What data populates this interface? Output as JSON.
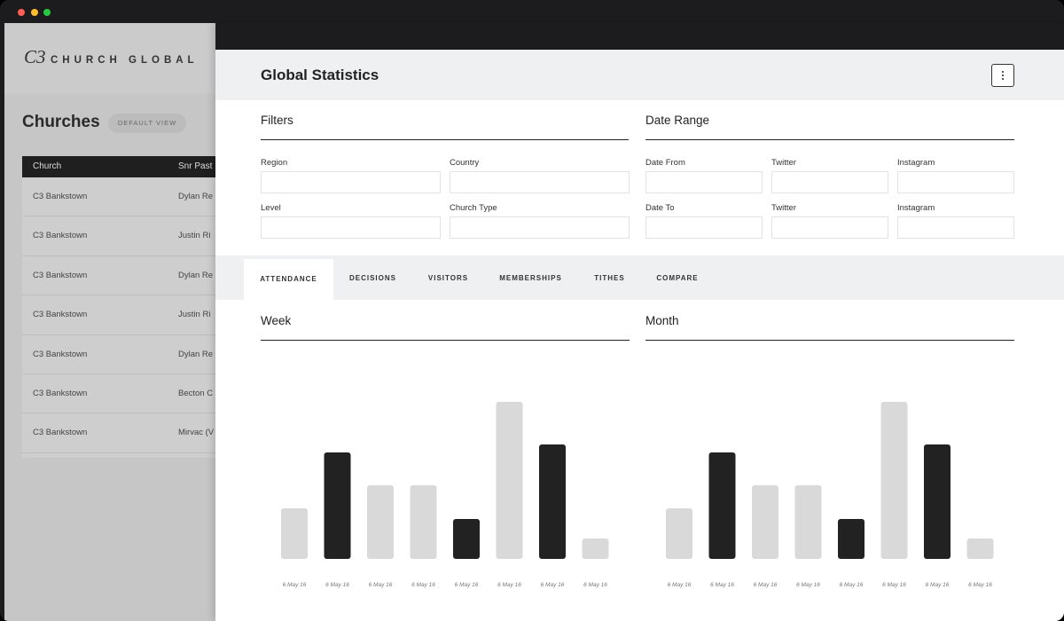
{
  "sidebar": {
    "logo_mark": "C3",
    "logo_text": "CHURCH GLOBAL",
    "title": "Churches",
    "badge": "DEFAULT VIEW",
    "table": {
      "headers": [
        "Church",
        "Snr Past"
      ],
      "rows": [
        [
          "C3 Bankstown",
          "Dylan Re"
        ],
        [
          "C3 Bankstown",
          "Justin Ri"
        ],
        [
          "C3 Bankstown",
          "Dylan Re"
        ],
        [
          "C3 Bankstown",
          "Justin Ri"
        ],
        [
          "C3 Bankstown",
          "Dylan Re"
        ],
        [
          "C3 Bankstown",
          "Becton C"
        ],
        [
          "C3 Bankstown",
          "Mirvac (V"
        ]
      ]
    }
  },
  "panel": {
    "title": "Global Statistics",
    "filters": {
      "title": "Filters",
      "fields": [
        "Region",
        "Country",
        "Level",
        "Church Type"
      ]
    },
    "date_range": {
      "title": "Date Range",
      "fields": [
        "Date From",
        "Twitter",
        "Instagram",
        "Date To",
        "Twitter",
        "Instagram"
      ]
    },
    "tabs": [
      "ATTENDANCE",
      "DECISIONS",
      "VISITORS",
      "MEMBERSHIPS",
      "TITHES",
      "COMPARE"
    ],
    "active_tab": 0,
    "charts": [
      {
        "type": "bar",
        "title": "Week",
        "categories": [
          "6 May 16",
          "6 May 16",
          "6 May 16",
          "6 May 16",
          "6 May 16",
          "6 May 16",
          "6 May 16",
          "6 May 16"
        ],
        "values": [
          57,
          120,
          83,
          83,
          45,
          177,
          129,
          23
        ],
        "colors": [
          "#d9d9d9",
          "#222222",
          "#d9d9d9",
          "#d9d9d9",
          "#222222",
          "#d9d9d9",
          "#222222",
          "#d9d9d9"
        ]
      },
      {
        "type": "bar",
        "title": "Month",
        "categories": [
          "6 May 16",
          "6 May 16",
          "6 May 16",
          "6 May 16",
          "6 May 16",
          "6 May 16",
          "6 May 16",
          "6 May 16"
        ],
        "values": [
          57,
          120,
          83,
          83,
          45,
          177,
          129,
          23
        ],
        "colors": [
          "#d9d9d9",
          "#222222",
          "#d9d9d9",
          "#d9d9d9",
          "#222222",
          "#d9d9d9",
          "#222222",
          "#d9d9d9"
        ]
      }
    ]
  }
}
